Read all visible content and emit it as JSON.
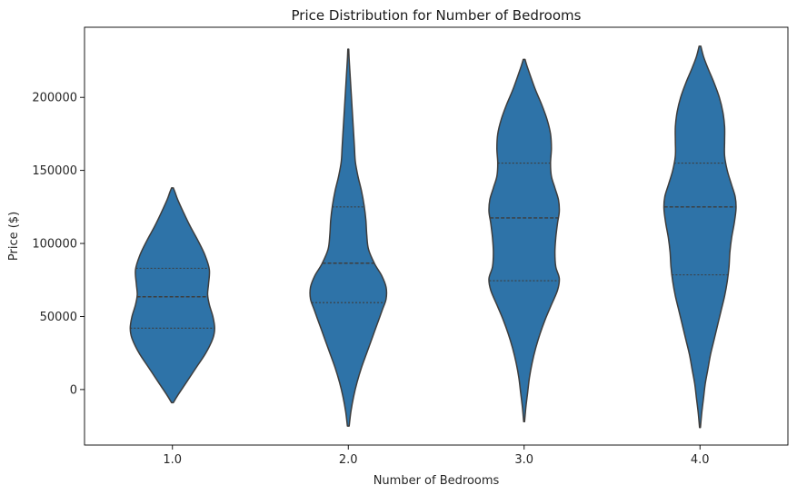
{
  "chart_data": {
    "type": "violin",
    "title": "Price Distribution for Number of Bedrooms",
    "xlabel": "Number of Bedrooms",
    "ylabel": "Price ($)",
    "categories": [
      "1.0",
      "2.0",
      "3.0",
      "4.0"
    ],
    "ylim": [
      -38000,
      248000
    ],
    "yticks": [
      0,
      50000,
      100000,
      150000,
      200000
    ],
    "yticklabels": [
      "0",
      "50000",
      "100000",
      "150000",
      "200000"
    ],
    "grid": false,
    "legend": "none",
    "fill_color": "#2e73a8",
    "edge_color": "#3d3d3d",
    "series": [
      {
        "category": "1.0",
        "q1": 42000,
        "median": 63500,
        "q3": 83000,
        "min": -9000,
        "max": 138000,
        "density": [
          [
            -9000,
            0.01
          ],
          [
            -4000,
            0.06
          ],
          [
            5000,
            0.16
          ],
          [
            15000,
            0.27
          ],
          [
            25000,
            0.38
          ],
          [
            35000,
            0.46
          ],
          [
            42000,
            0.48
          ],
          [
            50000,
            0.46
          ],
          [
            58000,
            0.42
          ],
          [
            65000,
            0.4
          ],
          [
            72000,
            0.41
          ],
          [
            82000,
            0.42
          ],
          [
            92000,
            0.37
          ],
          [
            102000,
            0.29
          ],
          [
            112000,
            0.2
          ],
          [
            122000,
            0.12
          ],
          [
            130000,
            0.06
          ],
          [
            135000,
            0.03
          ],
          [
            138000,
            0.01
          ]
        ]
      },
      {
        "category": "2.0",
        "q1": 59500,
        "median": 86500,
        "q3": 125000,
        "min": -25000,
        "max": 233000,
        "density": [
          [
            -25000,
            0.01
          ],
          [
            -15000,
            0.03
          ],
          [
            -5000,
            0.06
          ],
          [
            5000,
            0.1
          ],
          [
            15000,
            0.15
          ],
          [
            25000,
            0.21
          ],
          [
            35000,
            0.27
          ],
          [
            45000,
            0.33
          ],
          [
            55000,
            0.39
          ],
          [
            62000,
            0.43
          ],
          [
            70000,
            0.43
          ],
          [
            78000,
            0.38
          ],
          [
            86000,
            0.3
          ],
          [
            96000,
            0.23
          ],
          [
            106000,
            0.21
          ],
          [
            116000,
            0.2
          ],
          [
            126000,
            0.18
          ],
          [
            136000,
            0.15
          ],
          [
            146000,
            0.11
          ],
          [
            156000,
            0.08
          ],
          [
            166000,
            0.07
          ],
          [
            176000,
            0.06
          ],
          [
            186000,
            0.05
          ],
          [
            196000,
            0.04
          ],
          [
            206000,
            0.03
          ],
          [
            216000,
            0.02
          ],
          [
            226000,
            0.01
          ],
          [
            233000,
            0.005
          ]
        ]
      },
      {
        "category": "3.0",
        "q1": 74500,
        "median": 117500,
        "q3": 155000,
        "min": -22000,
        "max": 226000,
        "density": [
          [
            -22000,
            0.005
          ],
          [
            -12000,
            0.02
          ],
          [
            -2000,
            0.04
          ],
          [
            8000,
            0.06
          ],
          [
            18000,
            0.09
          ],
          [
            28000,
            0.13
          ],
          [
            38000,
            0.18
          ],
          [
            48000,
            0.24
          ],
          [
            58000,
            0.31
          ],
          [
            68000,
            0.38
          ],
          [
            76000,
            0.4
          ],
          [
            84000,
            0.36
          ],
          [
            94000,
            0.35
          ],
          [
            104000,
            0.36
          ],
          [
            114000,
            0.38
          ],
          [
            122000,
            0.4
          ],
          [
            130000,
            0.39
          ],
          [
            138000,
            0.35
          ],
          [
            146000,
            0.31
          ],
          [
            155000,
            0.3
          ],
          [
            165000,
            0.31
          ],
          [
            175000,
            0.3
          ],
          [
            185000,
            0.26
          ],
          [
            195000,
            0.2
          ],
          [
            205000,
            0.13
          ],
          [
            215000,
            0.07
          ],
          [
            222000,
            0.03
          ],
          [
            226000,
            0.01
          ]
        ]
      },
      {
        "category": "4.0",
        "q1": 78500,
        "median": 125000,
        "q3": 155000,
        "min": -26000,
        "max": 235000,
        "density": [
          [
            -26000,
            0.005
          ],
          [
            -16000,
            0.02
          ],
          [
            -6000,
            0.04
          ],
          [
            4000,
            0.06
          ],
          [
            14000,
            0.09
          ],
          [
            24000,
            0.12
          ],
          [
            34000,
            0.16
          ],
          [
            44000,
            0.2
          ],
          [
            54000,
            0.24
          ],
          [
            64000,
            0.28
          ],
          [
            74000,
            0.31
          ],
          [
            84000,
            0.33
          ],
          [
            94000,
            0.34
          ],
          [
            104000,
            0.36
          ],
          [
            114000,
            0.39
          ],
          [
            124000,
            0.41
          ],
          [
            132000,
            0.4
          ],
          [
            140000,
            0.36
          ],
          [
            150000,
            0.31
          ],
          [
            160000,
            0.28
          ],
          [
            170000,
            0.28
          ],
          [
            180000,
            0.28
          ],
          [
            190000,
            0.26
          ],
          [
            200000,
            0.22
          ],
          [
            210000,
            0.16
          ],
          [
            220000,
            0.09
          ],
          [
            228000,
            0.04
          ],
          [
            235000,
            0.01
          ]
        ]
      }
    ]
  }
}
